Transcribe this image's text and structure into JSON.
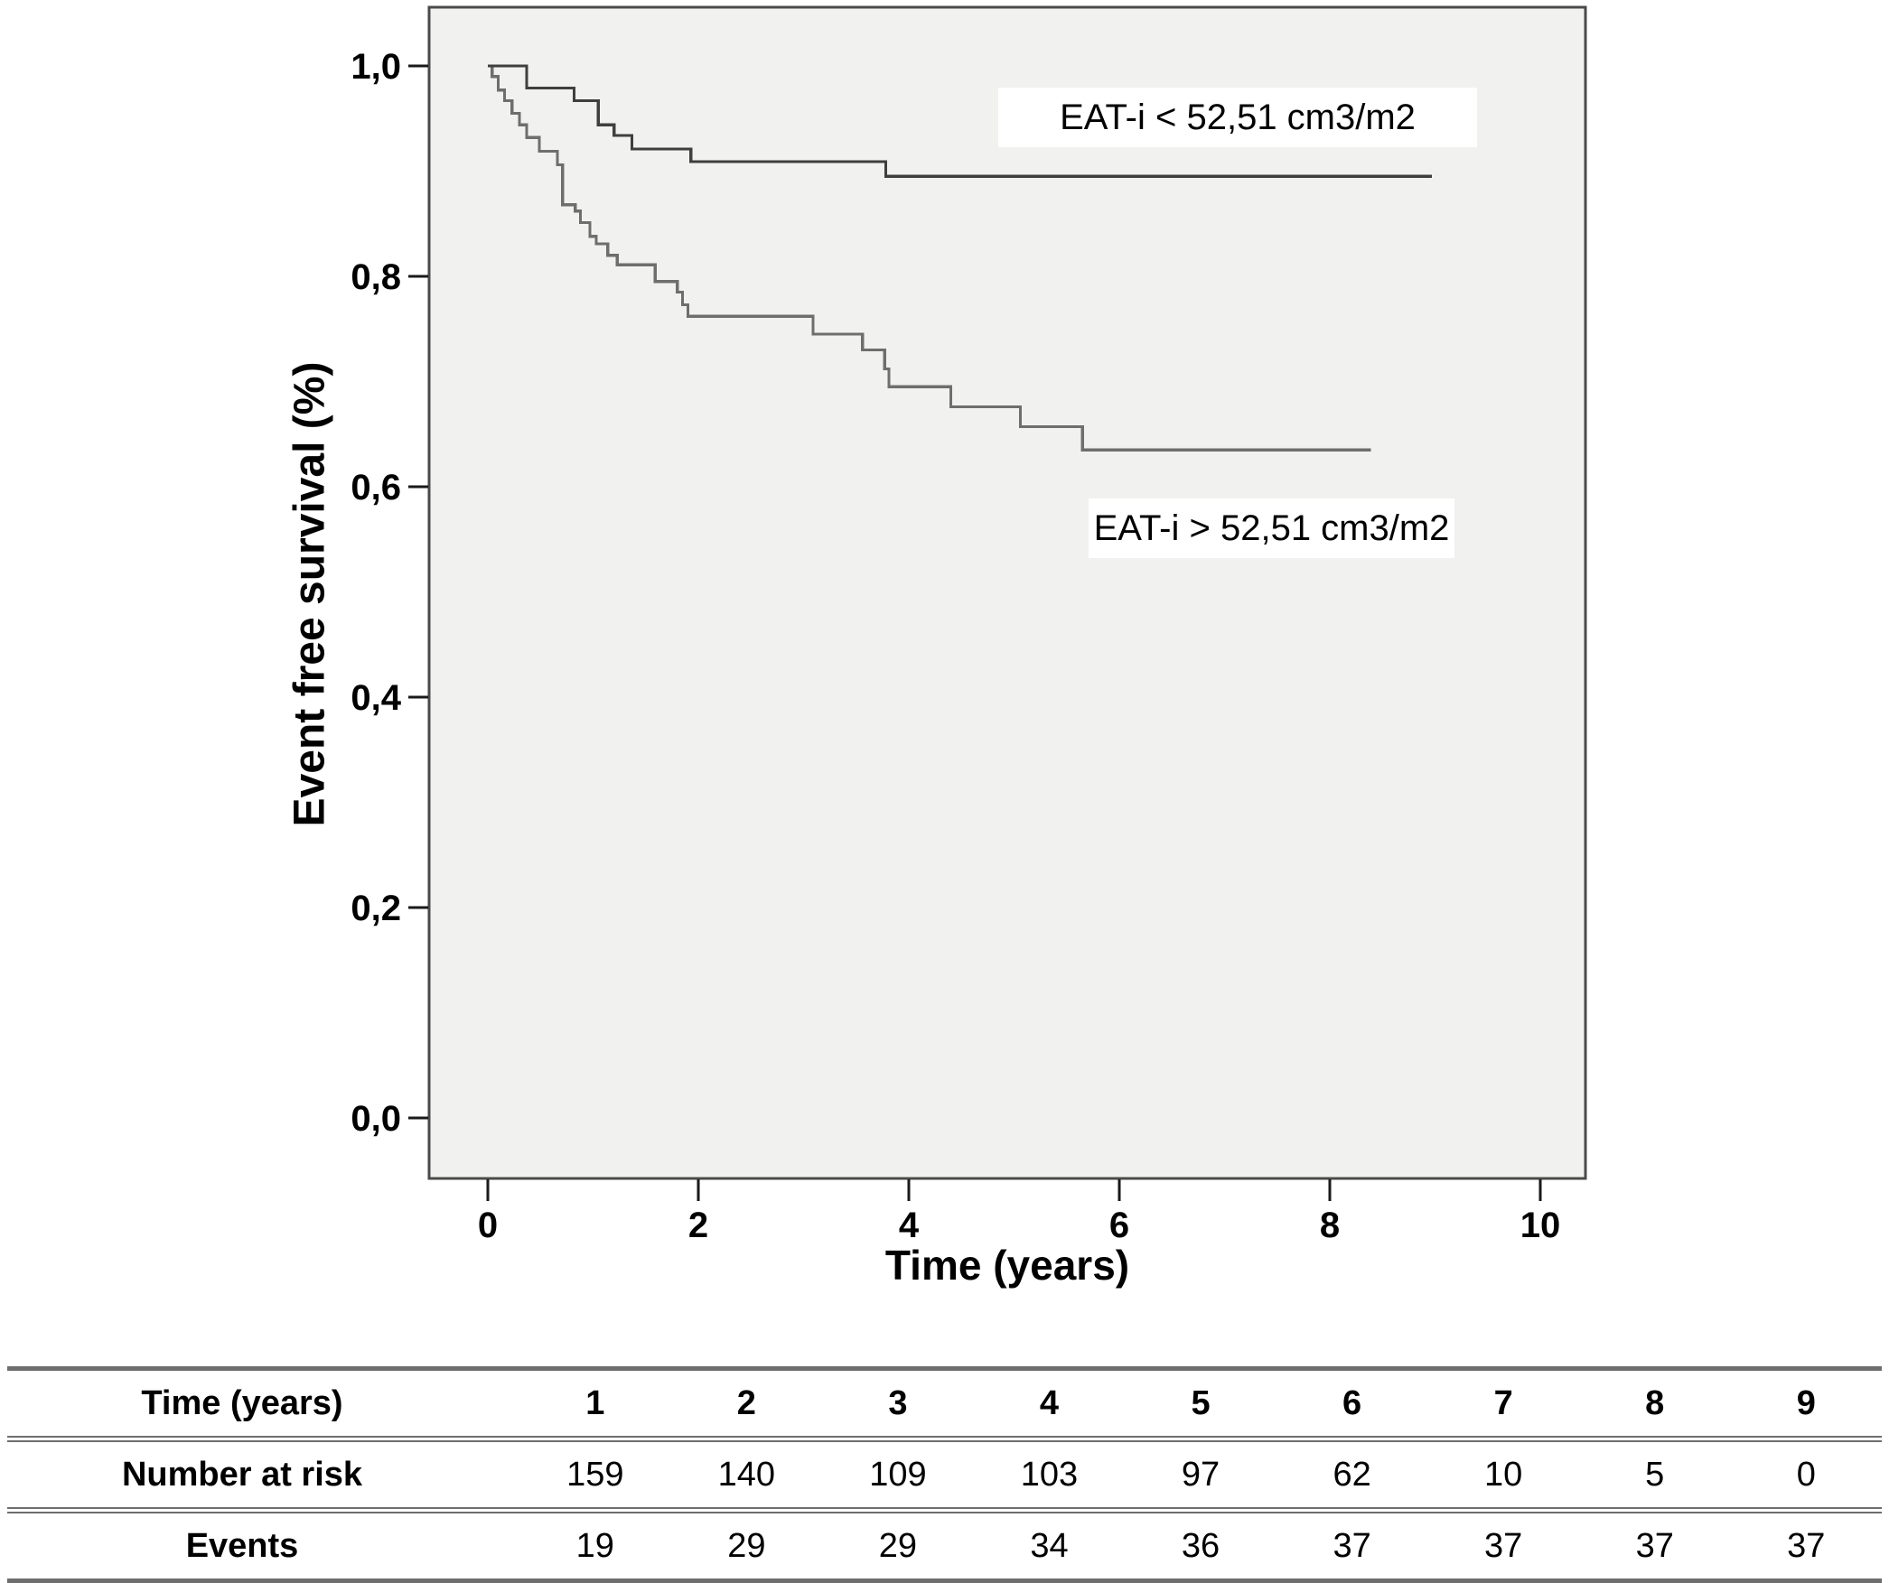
{
  "page": {
    "background": "#ffffff"
  },
  "colors": {
    "plot_bg": "#f1f1ef",
    "frame": "#4a4a4a",
    "tick": "#1a1a1a",
    "curve_low_eat": "#3f3f3f",
    "curve_high_eat": "#6e6e6e",
    "label_bg": "#ffffff",
    "table_rule": "#6e6e6e",
    "text": "#000000"
  },
  "chart_data": {
    "type": "line",
    "subtype": "kaplan_meier_step",
    "title": "",
    "xlabel": "Time (years)",
    "ylabel": "Event free survival (%)",
    "xlim": [
      -0.56,
      10.43
    ],
    "ylim": [
      -0.058,
      1.056
    ],
    "grid": false,
    "legend_position": "inline text labels on plot",
    "x_ticks": [
      0,
      2,
      4,
      6,
      8,
      10
    ],
    "x_tick_labels": [
      "0",
      "2",
      "4",
      "6",
      "8",
      "10"
    ],
    "y_ticks": [
      0.0,
      0.2,
      0.4,
      0.6,
      0.8,
      1.0
    ],
    "y_tick_labels": [
      "0,0",
      "0,2",
      "0,4",
      "0,6",
      "0,8",
      "1,0"
    ],
    "series": [
      {
        "name": "EAT-i < 52,51 cm3/m2",
        "role": "upper curve (low EAT-i group)",
        "steps_x_years_y_survival": [
          [
            0,
            1.0
          ],
          [
            0.37,
            0.979
          ],
          [
            0.82,
            0.967
          ],
          [
            1.05,
            0.944
          ],
          [
            1.2,
            0.934
          ],
          [
            1.37,
            0.921
          ],
          [
            1.93,
            0.909
          ],
          [
            3.78,
            0.895
          ],
          [
            8.97,
            0.895
          ]
        ]
      },
      {
        "name": "EAT-i > 52,51 cm3/m2",
        "role": "lower curve (high EAT-i group)",
        "steps_x_years_y_survival": [
          [
            0,
            1.0
          ],
          [
            0.04,
            0.99
          ],
          [
            0.1,
            0.977
          ],
          [
            0.16,
            0.967
          ],
          [
            0.23,
            0.955
          ],
          [
            0.3,
            0.944
          ],
          [
            0.37,
            0.932
          ],
          [
            0.49,
            0.919
          ],
          [
            0.66,
            0.906
          ],
          [
            0.71,
            0.868
          ],
          [
            0.83,
            0.862
          ],
          [
            0.88,
            0.851
          ],
          [
            0.97,
            0.838
          ],
          [
            1.03,
            0.831
          ],
          [
            1.14,
            0.82
          ],
          [
            1.23,
            0.811
          ],
          [
            1.59,
            0.795
          ],
          [
            1.8,
            0.785
          ],
          [
            1.85,
            0.773
          ],
          [
            1.9,
            0.762
          ],
          [
            3.09,
            0.745
          ],
          [
            3.56,
            0.73
          ],
          [
            3.77,
            0.712
          ],
          [
            3.81,
            0.695
          ],
          [
            4.4,
            0.676
          ],
          [
            5.06,
            0.657
          ],
          [
            5.65,
            0.635
          ],
          [
            8.39,
            0.635
          ]
        ]
      }
    ]
  },
  "risk_table": {
    "rows": [
      {
        "label": "Time (years)",
        "values_bold": true,
        "values": [
          "1",
          "2",
          "3",
          "4",
          "5",
          "6",
          "7",
          "8",
          "9"
        ]
      },
      {
        "label": "Number at risk",
        "values_bold": false,
        "values": [
          "159",
          "140",
          "109",
          "103",
          "97",
          "62",
          "10",
          "5",
          "0"
        ]
      },
      {
        "label": "Events",
        "values_bold": false,
        "values": [
          "19",
          "29",
          "29",
          "34",
          "36",
          "37",
          "37",
          "37",
          "37"
        ]
      }
    ]
  }
}
